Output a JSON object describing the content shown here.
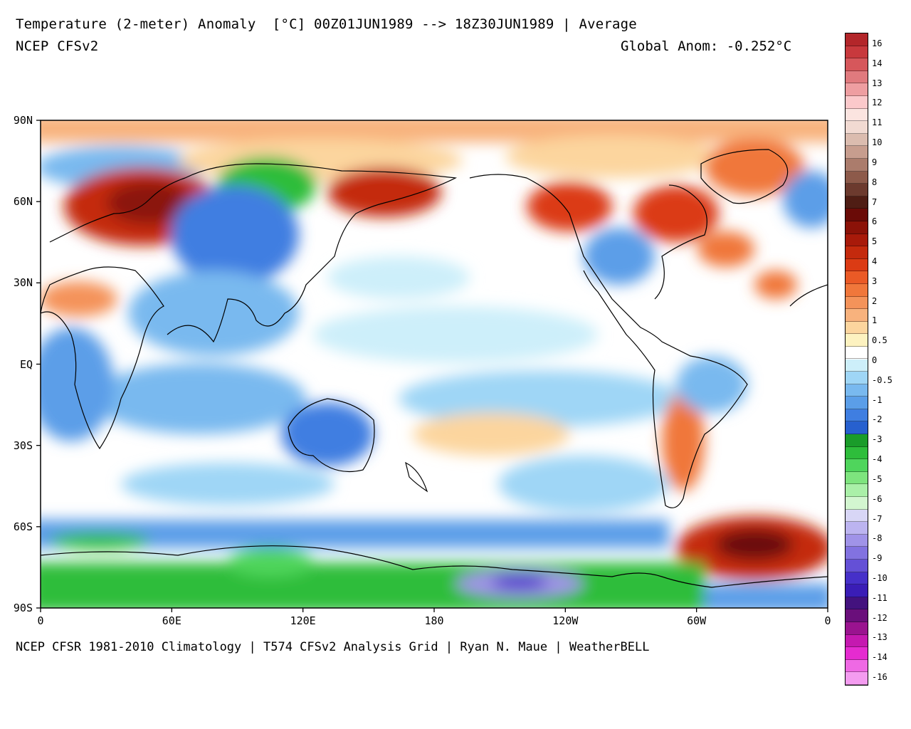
{
  "header": {
    "title": "Temperature (2-meter) Anomaly  [°C] 00Z01JUN1989 --> 18Z30JUN1989 | Average",
    "model": "NCEP CFSv2",
    "global_anom": "Global Anom: -0.252°C"
  },
  "footer": "NCEP CFSR 1981-2010 Climatology | T574 CFSv2 Analysis Grid | Ryan N. Maue | WeatherBELL",
  "axes": {
    "lat_labels": [
      "90N",
      "60N",
      "30N",
      "EQ",
      "30S",
      "60S",
      "90S"
    ],
    "lon_labels": [
      "0",
      "60E",
      "120E",
      "180",
      "120W",
      "60W",
      "0"
    ]
  },
  "colorbar": {
    "labels": [
      "16",
      "14",
      "13",
      "12",
      "11",
      "10",
      "9",
      "8",
      "7",
      "6",
      "5",
      "4",
      "3",
      "2",
      "1",
      "0.5",
      "0",
      "-0.5",
      "-1",
      "-2",
      "-3",
      "-4",
      "-5",
      "-6",
      "-7",
      "-8",
      "-9",
      "-10",
      "-11",
      "-12",
      "-13",
      "-14",
      "-16"
    ],
    "colors": [
      "#b3262a",
      "#c8393d",
      "#d6575b",
      "#e07a7e",
      "#ee9ea1",
      "#fbc9cb",
      "#fbe4e0",
      "#f1dad2",
      "#dbbcaf",
      "#c79d8e",
      "#ab7c6c",
      "#8d5a4a",
      "#6c3a2e",
      "#4f1d14",
      "#6a0b07",
      "#8b1208",
      "#a81a0a",
      "#c42a0d",
      "#db3b14",
      "#ea5a26",
      "#f0773b",
      "#f4935a",
      "#f8b27d",
      "#fcd59e",
      "#fdf2c0",
      "#ffffff",
      "#cdeffa",
      "#9fd6f6",
      "#79b9ef",
      "#5b9ee8",
      "#3f7ee1",
      "#2760cf",
      "#1a9c2a",
      "#2ebd3b",
      "#4fd55c",
      "#7ee47e",
      "#aaf0a8",
      "#d3f6d0",
      "#d8d6f6",
      "#bcb4f0",
      "#a093e8",
      "#8272e0",
      "#6450d6",
      "#4630c9",
      "#3a1db6",
      "#43127e",
      "#6a0f7b",
      "#9a138f",
      "#c519b0",
      "#e52bd0",
      "#ef69e4",
      "#f49cf0"
    ]
  }
}
